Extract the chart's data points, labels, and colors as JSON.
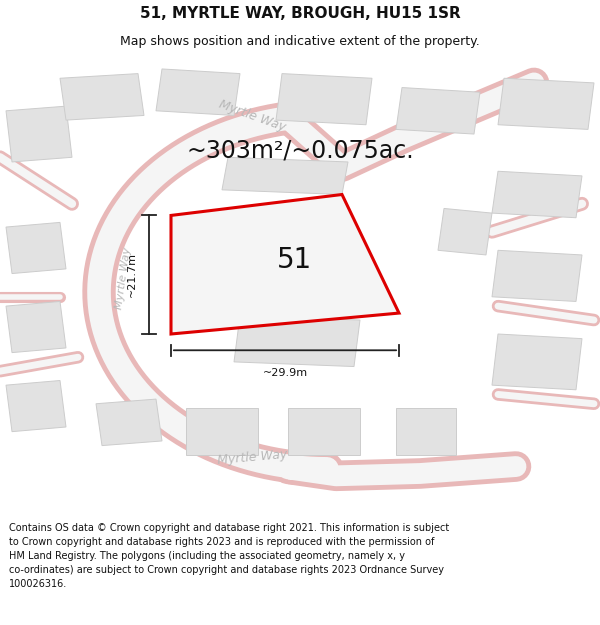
{
  "title": "51, MYRTLE WAY, BROUGH, HU15 1SR",
  "subtitle": "Map shows position and indicative extent of the property.",
  "footer_line1": "Contains OS data © Crown copyright and database right 2021. This information is subject",
  "footer_line2": "to Crown copyright and database rights 2023 and is reproduced with the permission of",
  "footer_line3": "HM Land Registry. The polygons (including the associated geometry, namely x, y",
  "footer_line4": "co-ordinates) are subject to Crown copyright and database rights 2023 Ordnance Survey",
  "footer_line5": "100026316.",
  "area_label": "~303m²/~0.075ac.",
  "width_label": "~29.9m",
  "height_label": "~21.7m",
  "plot_number": "51",
  "road_label": "Myrtle Way",
  "bg_color": "#f0f0f0",
  "white": "#ffffff",
  "plot_fill": "#f5f5f5",
  "plot_edge": "#dd0000",
  "road_fill": "#f5f5f5",
  "road_edge": "#e8b8b8",
  "building_fill": "#e2e2e2",
  "building_edge": "#cccccc",
  "dim_color": "#222222",
  "road_label_color": "#b8b8b8",
  "text_color": "#111111",
  "title_fs": 11,
  "subtitle_fs": 9,
  "footer_fs": 7,
  "area_fs": 17,
  "number_fs": 20,
  "road_fs": 9,
  "dim_fs": 8
}
